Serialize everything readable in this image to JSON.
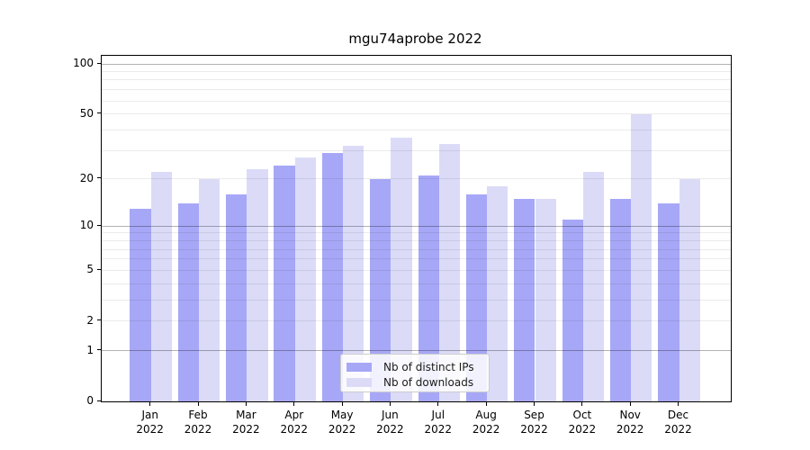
{
  "chart_data": {
    "type": "bar",
    "title": "mgu74aprobe 2022",
    "categories": [
      "Jan 2022",
      "Feb 2022",
      "Mar 2022",
      "Apr 2022",
      "May 2022",
      "Jun 2022",
      "Jul 2022",
      "Aug 2022",
      "Sep 2022",
      "Oct 2022",
      "Nov 2022",
      "Dec 2022"
    ],
    "series": [
      {
        "name": "Nb of distinct IPs",
        "color": "#a7a7f7",
        "values": [
          13,
          14,
          16,
          24,
          29,
          20,
          21,
          16,
          15,
          11,
          15,
          14
        ]
      },
      {
        "name": "Nb of downloads",
        "color": "#dbdbf8",
        "values": [
          22,
          20,
          23,
          27,
          32,
          36,
          33,
          18,
          15,
          22,
          50,
          20
        ]
      }
    ],
    "xlabel": "",
    "ylabel": "",
    "yscale": "log(x+1)",
    "ylim": [
      0,
      112
    ],
    "yticks": [
      0,
      1,
      2,
      5,
      10,
      20,
      50,
      100
    ],
    "grid_major": [
      1,
      10,
      100
    ],
    "grid_minor": [
      2,
      3,
      4,
      5,
      6,
      7,
      8,
      9,
      20,
      30,
      40,
      50,
      60,
      70,
      80,
      90
    ],
    "grid": true,
    "legend_position": "lower center"
  }
}
